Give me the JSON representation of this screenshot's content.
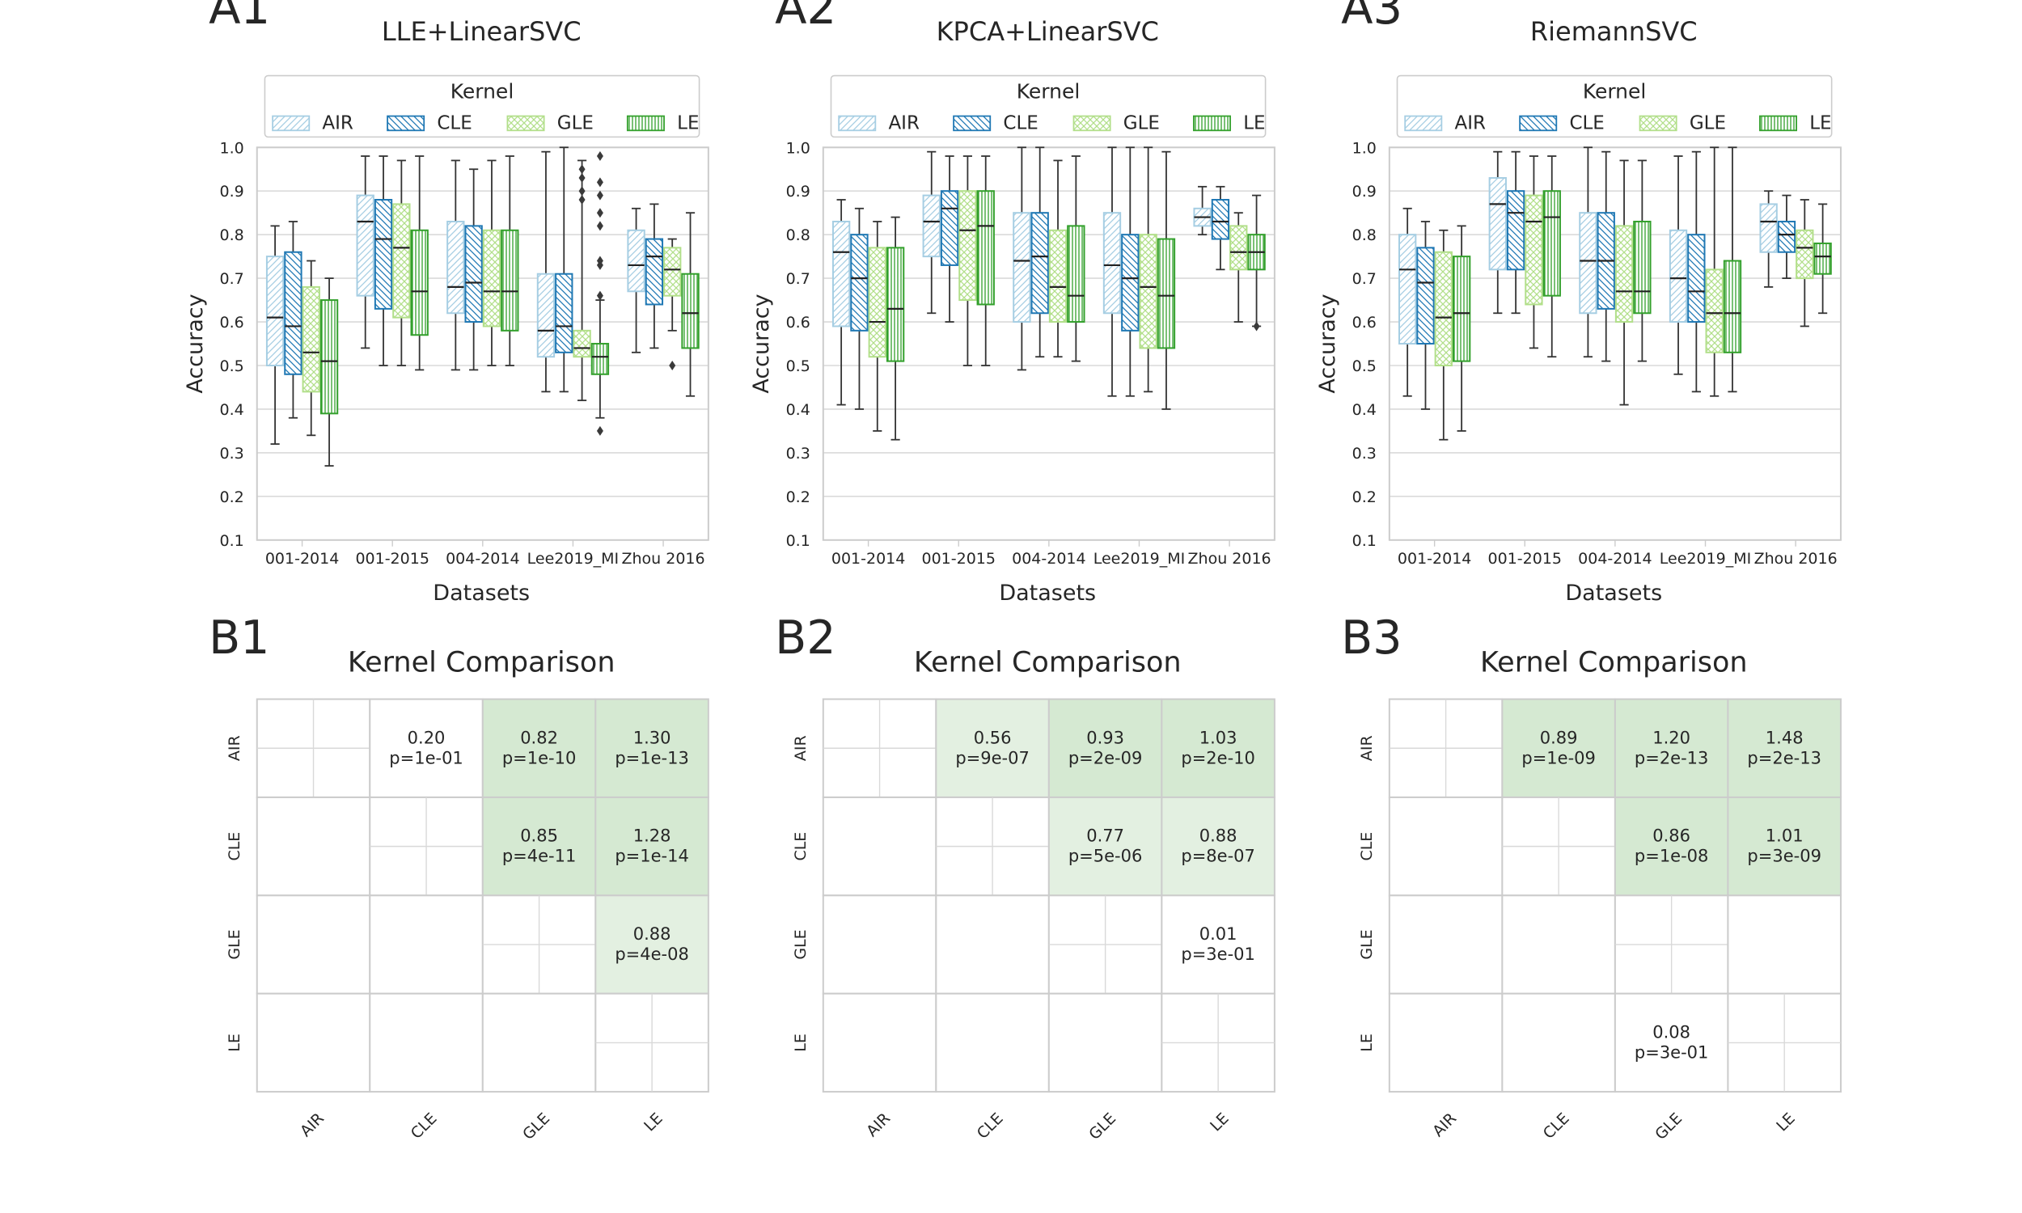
{
  "colors": {
    "AIR": "#a6cee3",
    "CLE": "#1f78b4",
    "GLE": "#b2df8a",
    "LE": "#33a02c",
    "grid": "#dadada",
    "heat": "#d5e9d2",
    "heat_light": "#e3f0e1"
  },
  "kernel_icons": {
    "AIR": "diagonal-hatch-icon",
    "CLE": "back-diagonal-hatch-icon",
    "GLE": "cross-hatch-icon",
    "LE": "vertical-hatch-icon"
  },
  "chart_data": [
    {
      "panel": "A1",
      "type": "box",
      "title": "LLE+LinearSVC",
      "xlabel": "Datasets",
      "ylabel": "Accuracy",
      "ylim": [
        0.1,
        1.0
      ],
      "yticks": [
        "0.1",
        "0.2",
        "0.3",
        "0.4",
        "0.5",
        "0.6",
        "0.7",
        "0.8",
        "0.9",
        "1.0"
      ],
      "categories": [
        "001-2014",
        "001-2015",
        "004-2014",
        "Lee2019_MI",
        "Zhou 2016"
      ],
      "legend": {
        "title": "Kernel",
        "entries": [
          "AIR",
          "CLE",
          "GLE",
          "LE"
        ],
        "position": "top-center"
      },
      "series": [
        {
          "name": "AIR",
          "boxes": [
            [
              0.32,
              0.5,
              0.61,
              0.75,
              0.82
            ],
            [
              0.54,
              0.66,
              0.83,
              0.89,
              0.98
            ],
            [
              0.49,
              0.62,
              0.68,
              0.83,
              0.97
            ],
            [
              0.44,
              0.52,
              0.58,
              0.71,
              0.99
            ],
            [
              0.53,
              0.67,
              0.73,
              0.81,
              0.86
            ]
          ]
        },
        {
          "name": "CLE",
          "boxes": [
            [
              0.38,
              0.48,
              0.59,
              0.76,
              0.83
            ],
            [
              0.5,
              0.63,
              0.79,
              0.88,
              0.98
            ],
            [
              0.49,
              0.6,
              0.69,
              0.82,
              0.95
            ],
            [
              0.44,
              0.53,
              0.59,
              0.71,
              1.0
            ],
            [
              0.54,
              0.64,
              0.75,
              0.79,
              0.87
            ]
          ]
        },
        {
          "name": "GLE",
          "boxes": [
            [
              0.34,
              0.44,
              0.53,
              0.68,
              0.74
            ],
            [
              0.5,
              0.61,
              0.77,
              0.87,
              0.97
            ],
            [
              0.5,
              0.59,
              0.67,
              0.81,
              0.97
            ],
            [
              0.42,
              0.52,
              0.54,
              0.58,
              0.97
            ],
            [
              0.58,
              0.66,
              0.72,
              0.77,
              0.79
            ]
          ]
        },
        {
          "name": "LE",
          "boxes": [
            [
              0.27,
              0.39,
              0.51,
              0.65,
              0.7
            ],
            [
              0.49,
              0.57,
              0.67,
              0.81,
              0.98
            ],
            [
              0.5,
              0.58,
              0.67,
              0.81,
              0.98
            ],
            [
              0.38,
              0.48,
              0.52,
              0.55,
              0.65
            ],
            [
              0.43,
              0.54,
              0.62,
              0.71,
              0.85
            ]
          ]
        }
      ],
      "outliers": [
        {
          "series": "LE",
          "category": "Lee2019_MI",
          "values": [
            0.35,
            0.66
          ]
        },
        {
          "series": "GLE",
          "category": "Lee2019_MI",
          "values": [
            0.88,
            0.9,
            0.93,
            0.95
          ]
        },
        {
          "series": "LE",
          "category": "Lee2019_MI",
          "values": [
            0.73,
            0.74,
            0.82,
            0.85,
            0.89,
            0.92,
            0.98
          ]
        },
        {
          "series": "GLE",
          "category": "Zhou 2016",
          "values": [
            0.5
          ]
        }
      ]
    },
    {
      "panel": "A2",
      "type": "box",
      "title": "KPCA+LinearSVC",
      "xlabel": "Datasets",
      "ylabel": "Accuracy",
      "ylim": [
        0.1,
        1.0
      ],
      "yticks": [
        "0.1",
        "0.2",
        "0.3",
        "0.4",
        "0.5",
        "0.6",
        "0.7",
        "0.8",
        "0.9",
        "1.0"
      ],
      "categories": [
        "001-2014",
        "001-2015",
        "004-2014",
        "Lee2019_MI",
        "Zhou 2016"
      ],
      "legend": {
        "title": "Kernel",
        "entries": [
          "AIR",
          "CLE",
          "GLE",
          "LE"
        ],
        "position": "top-center"
      },
      "series": [
        {
          "name": "AIR",
          "boxes": [
            [
              0.41,
              0.59,
              0.76,
              0.83,
              0.88
            ],
            [
              0.62,
              0.75,
              0.83,
              0.89,
              0.99
            ],
            [
              0.49,
              0.6,
              0.74,
              0.85,
              1.0
            ],
            [
              0.43,
              0.62,
              0.73,
              0.85,
              1.0
            ],
            [
              0.8,
              0.82,
              0.84,
              0.86,
              0.91
            ]
          ]
        },
        {
          "name": "CLE",
          "boxes": [
            [
              0.4,
              0.58,
              0.7,
              0.8,
              0.86
            ],
            [
              0.6,
              0.73,
              0.86,
              0.9,
              0.98
            ],
            [
              0.52,
              0.62,
              0.75,
              0.85,
              1.0
            ],
            [
              0.43,
              0.58,
              0.7,
              0.8,
              1.0
            ],
            [
              0.72,
              0.79,
              0.83,
              0.88,
              0.91
            ]
          ]
        },
        {
          "name": "GLE",
          "boxes": [
            [
              0.35,
              0.52,
              0.6,
              0.77,
              0.83
            ],
            [
              0.5,
              0.65,
              0.81,
              0.9,
              0.98
            ],
            [
              0.52,
              0.6,
              0.68,
              0.81,
              0.97
            ],
            [
              0.44,
              0.54,
              0.68,
              0.8,
              1.0
            ],
            [
              0.6,
              0.72,
              0.76,
              0.82,
              0.85
            ]
          ]
        },
        {
          "name": "LE",
          "boxes": [
            [
              0.33,
              0.51,
              0.63,
              0.77,
              0.84
            ],
            [
              0.5,
              0.64,
              0.82,
              0.9,
              0.98
            ],
            [
              0.51,
              0.6,
              0.66,
              0.82,
              0.98
            ],
            [
              0.4,
              0.54,
              0.66,
              0.79,
              0.99
            ],
            [
              0.59,
              0.72,
              0.76,
              0.8,
              0.89
            ]
          ]
        }
      ],
      "outliers": [
        {
          "series": "LE",
          "category": "Zhou 2016",
          "values": [
            0.59
          ]
        }
      ]
    },
    {
      "panel": "A3",
      "type": "box",
      "title": "RiemannSVC",
      "xlabel": "Datasets",
      "ylabel": "Accuracy",
      "ylim": [
        0.1,
        1.0
      ],
      "yticks": [
        "0.1",
        "0.2",
        "0.3",
        "0.4",
        "0.5",
        "0.6",
        "0.7",
        "0.8",
        "0.9",
        "1.0"
      ],
      "categories": [
        "001-2014",
        "001-2015",
        "004-2014",
        "Lee2019_MI",
        "Zhou 2016"
      ],
      "legend": {
        "title": "Kernel",
        "entries": [
          "AIR",
          "CLE",
          "GLE",
          "LE"
        ],
        "position": "top-center"
      },
      "series": [
        {
          "name": "AIR",
          "boxes": [
            [
              0.43,
              0.55,
              0.72,
              0.8,
              0.86
            ],
            [
              0.62,
              0.72,
              0.87,
              0.93,
              0.99
            ],
            [
              0.52,
              0.62,
              0.74,
              0.85,
              1.0
            ],
            [
              0.48,
              0.6,
              0.7,
              0.81,
              0.98
            ],
            [
              0.68,
              0.76,
              0.83,
              0.87,
              0.9
            ]
          ]
        },
        {
          "name": "CLE",
          "boxes": [
            [
              0.4,
              0.55,
              0.69,
              0.77,
              0.83
            ],
            [
              0.62,
              0.72,
              0.85,
              0.9,
              0.99
            ],
            [
              0.51,
              0.63,
              0.74,
              0.85,
              0.99
            ],
            [
              0.44,
              0.6,
              0.67,
              0.8,
              0.99
            ],
            [
              0.7,
              0.76,
              0.8,
              0.83,
              0.89
            ]
          ]
        },
        {
          "name": "GLE",
          "boxes": [
            [
              0.33,
              0.5,
              0.61,
              0.76,
              0.81
            ],
            [
              0.54,
              0.64,
              0.83,
              0.89,
              0.98
            ],
            [
              0.41,
              0.6,
              0.67,
              0.82,
              0.97
            ],
            [
              0.43,
              0.53,
              0.62,
              0.72,
              1.0
            ],
            [
              0.59,
              0.7,
              0.77,
              0.81,
              0.88
            ]
          ]
        },
        {
          "name": "LE",
          "boxes": [
            [
              0.35,
              0.51,
              0.62,
              0.75,
              0.82
            ],
            [
              0.52,
              0.66,
              0.84,
              0.9,
              0.98
            ],
            [
              0.51,
              0.62,
              0.67,
              0.83,
              0.97
            ],
            [
              0.44,
              0.53,
              0.62,
              0.74,
              1.0
            ],
            [
              0.62,
              0.71,
              0.75,
              0.78,
              0.87
            ]
          ]
        }
      ],
      "outliers": []
    },
    {
      "panel": "B1",
      "type": "heatmap",
      "title": "Kernel Comparison",
      "rows": [
        "AIR",
        "CLE",
        "GLE",
        "LE"
      ],
      "cols": [
        "AIR",
        "CLE",
        "GLE",
        "LE"
      ],
      "cells": [
        {
          "row": 0,
          "col": 1,
          "value": "0.20",
          "p": "p=1e-01",
          "shade": "none"
        },
        {
          "row": 0,
          "col": 2,
          "value": "0.82",
          "p": "p=1e-10",
          "shade": "heat"
        },
        {
          "row": 0,
          "col": 3,
          "value": "1.30",
          "p": "p=1e-13",
          "shade": "heat"
        },
        {
          "row": 1,
          "col": 2,
          "value": "0.85",
          "p": "p=4e-11",
          "shade": "heat"
        },
        {
          "row": 1,
          "col": 3,
          "value": "1.28",
          "p": "p=1e-14",
          "shade": "heat"
        },
        {
          "row": 2,
          "col": 3,
          "value": "0.88",
          "p": "p=4e-08",
          "shade": "heat_light"
        }
      ]
    },
    {
      "panel": "B2",
      "type": "heatmap",
      "title": "Kernel Comparison",
      "rows": [
        "AIR",
        "CLE",
        "GLE",
        "LE"
      ],
      "cols": [
        "AIR",
        "CLE",
        "GLE",
        "LE"
      ],
      "cells": [
        {
          "row": 0,
          "col": 1,
          "value": "0.56",
          "p": "p=9e-07",
          "shade": "heat_light"
        },
        {
          "row": 0,
          "col": 2,
          "value": "0.93",
          "p": "p=2e-09",
          "shade": "heat"
        },
        {
          "row": 0,
          "col": 3,
          "value": "1.03",
          "p": "p=2e-10",
          "shade": "heat"
        },
        {
          "row": 1,
          "col": 2,
          "value": "0.77",
          "p": "p=5e-06",
          "shade": "heat_light"
        },
        {
          "row": 1,
          "col": 3,
          "value": "0.88",
          "p": "p=8e-07",
          "shade": "heat_light"
        },
        {
          "row": 2,
          "col": 3,
          "value": "0.01",
          "p": "p=3e-01",
          "shade": "none"
        }
      ]
    },
    {
      "panel": "B3",
      "type": "heatmap",
      "title": "Kernel Comparison",
      "rows": [
        "AIR",
        "CLE",
        "GLE",
        "LE"
      ],
      "cols": [
        "AIR",
        "CLE",
        "GLE",
        "LE"
      ],
      "cells": [
        {
          "row": 0,
          "col": 1,
          "value": "0.89",
          "p": "p=1e-09",
          "shade": "heat"
        },
        {
          "row": 0,
          "col": 2,
          "value": "1.20",
          "p": "p=2e-13",
          "shade": "heat"
        },
        {
          "row": 0,
          "col": 3,
          "value": "1.48",
          "p": "p=2e-13",
          "shade": "heat"
        },
        {
          "row": 1,
          "col": 2,
          "value": "0.86",
          "p": "p=1e-08",
          "shade": "heat"
        },
        {
          "row": 1,
          "col": 3,
          "value": "1.01",
          "p": "p=3e-09",
          "shade": "heat"
        },
        {
          "row": 3,
          "col": 2,
          "value": "0.08",
          "p": "p=3e-01",
          "shade": "none"
        }
      ]
    }
  ]
}
